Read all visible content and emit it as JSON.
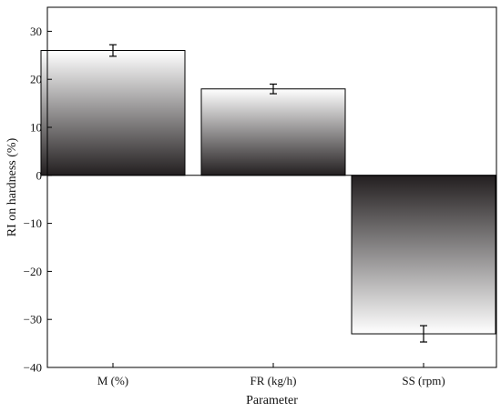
{
  "chart_data": {
    "type": "bar",
    "categories": [
      "M (%)",
      "FR (kg/h)",
      "SS (rpm)"
    ],
    "values": [
      26,
      18,
      -33
    ],
    "error": [
      1.2,
      1.0,
      1.7
    ],
    "xlabel": "Parameter",
    "ylabel": "RI on hardness (%)",
    "ylim": [
      -40,
      35
    ],
    "yticks": [
      30,
      20,
      10,
      0,
      -10,
      -20,
      -30,
      -40
    ],
    "grid": false,
    "bar_gradient": [
      "#ffffff",
      "#231f20"
    ]
  }
}
